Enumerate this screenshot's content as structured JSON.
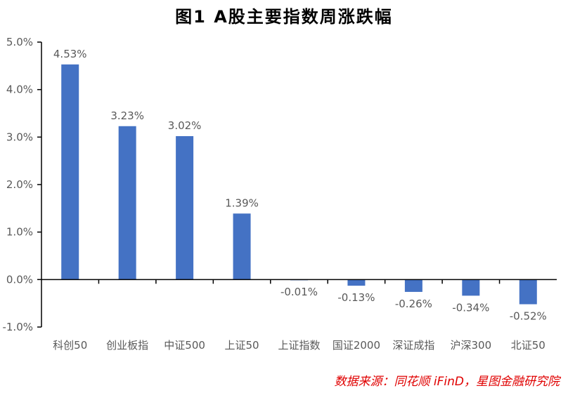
{
  "title": "图1  A股主要指数周涨跌幅",
  "source": "数据来源：同花顺 iFinD，星图金融研究院",
  "chart_data": {
    "type": "bar",
    "title": "图1  A股主要指数周涨跌幅",
    "categories": [
      "科创50",
      "创业板指",
      "中证500",
      "上证50",
      "上证指数",
      "国证2000",
      "深证成指",
      "沪深300",
      "北证50"
    ],
    "values": [
      4.53,
      3.23,
      3.02,
      1.39,
      -0.01,
      -0.13,
      -0.26,
      -0.34,
      -0.52
    ],
    "data_labels": [
      "4.53%",
      "3.23%",
      "3.02%",
      "1.39%",
      "-0.01%",
      "-0.13%",
      "-0.26%",
      "-0.34%",
      "-0.52%"
    ],
    "ylim": [
      -1.0,
      5.0
    ],
    "yticks": [
      "-1.0%",
      "0.0%",
      "1.0%",
      "2.0%",
      "3.0%",
      "4.0%",
      "5.0%"
    ],
    "grid": false,
    "bar_color": "#4472C4"
  }
}
